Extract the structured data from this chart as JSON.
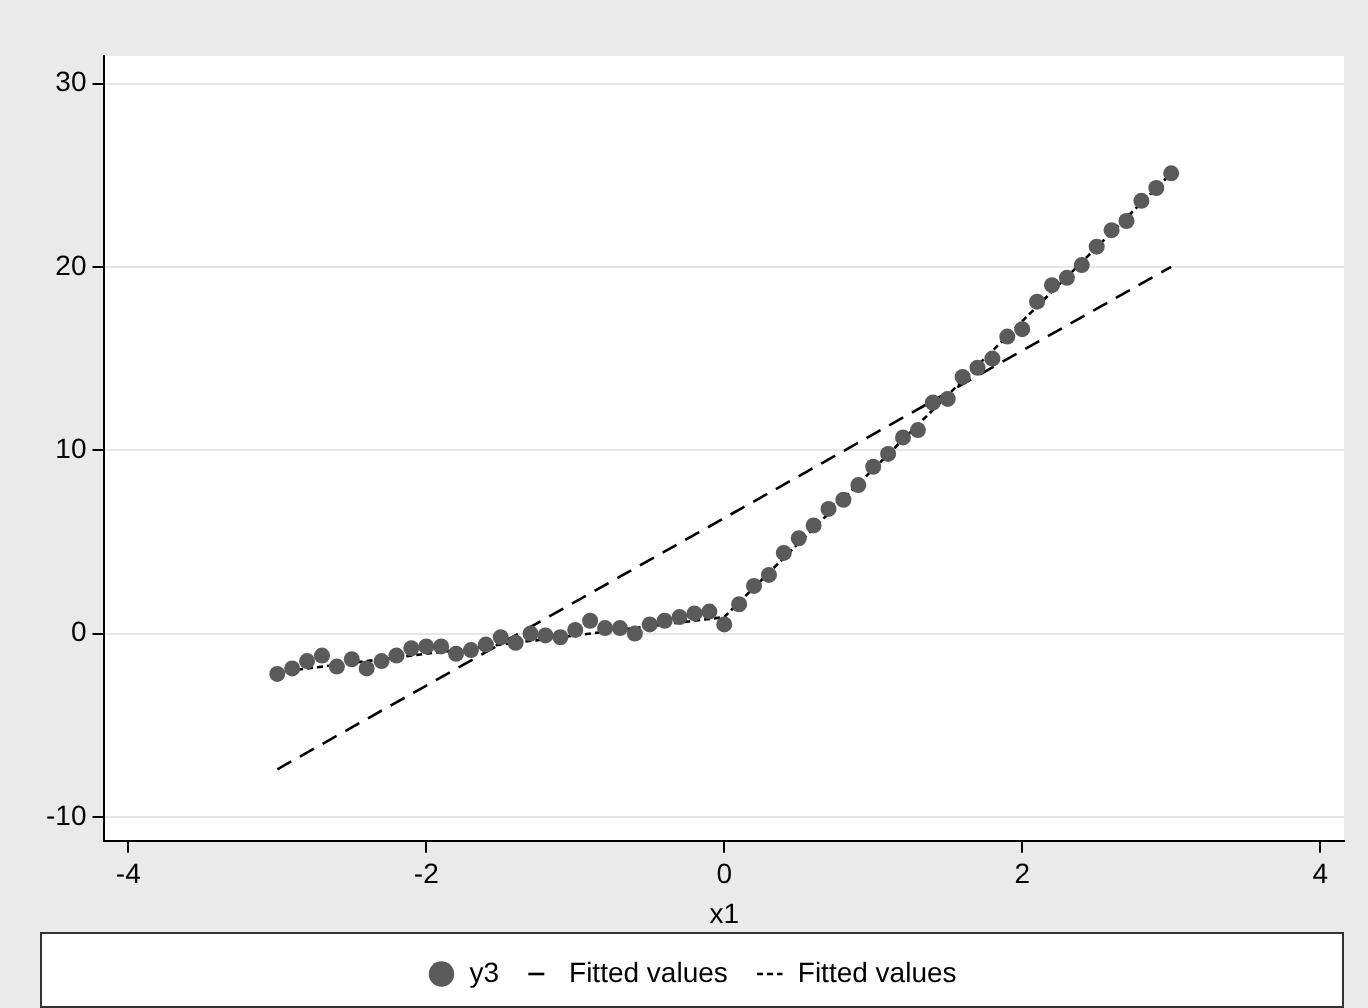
{
  "chart_data": {
    "type": "scatter",
    "xlabel": "x1",
    "xlim": [
      -4.16,
      4.16
    ],
    "xticks": [
      -4,
      -2,
      0,
      2,
      4
    ],
    "ylim": [
      -11.3,
      31.5
    ],
    "yticks": [
      -10,
      0,
      10,
      20,
      30
    ],
    "grid": "y",
    "legend": "bottom",
    "series": [
      {
        "name": "y3",
        "type": "scatter",
        "color": "#5a5a5a",
        "marker": "circle",
        "x": [
          -3.0,
          -2.9,
          -2.8,
          -2.7,
          -2.6,
          -2.5,
          -2.4,
          -2.3,
          -2.2,
          -2.1,
          -2.0,
          -1.9,
          -1.8,
          -1.7,
          -1.6,
          -1.5,
          -1.4,
          -1.3,
          -1.2,
          -1.1,
          -1.0,
          -0.9,
          -0.8,
          -0.7,
          -0.6,
          -0.5,
          -0.4,
          -0.3,
          -0.2,
          -0.1,
          0.0,
          0.1,
          0.2,
          0.3,
          0.4,
          0.5,
          0.6,
          0.7,
          0.8,
          0.9,
          1.0,
          1.1,
          1.2,
          1.3,
          1.4,
          1.5,
          1.6,
          1.7,
          1.8,
          1.9,
          2.0,
          2.1,
          2.2,
          2.3,
          2.4,
          2.5,
          2.6,
          2.7,
          2.8,
          2.9,
          3.0
        ],
        "values": [
          -2.2,
          -1.9,
          -1.5,
          -1.2,
          -1.8,
          -1.4,
          -1.9,
          -1.5,
          -1.2,
          -0.8,
          -0.7,
          -0.7,
          -1.1,
          -0.9,
          -0.6,
          -0.2,
          -0.5,
          0.0,
          -0.1,
          -0.2,
          0.2,
          0.7,
          0.3,
          0.3,
          0.0,
          0.5,
          0.7,
          0.9,
          1.1,
          1.2,
          0.5,
          1.6,
          2.6,
          3.2,
          4.4,
          5.2,
          5.9,
          6.8,
          7.3,
          8.1,
          9.1,
          9.8,
          10.7,
          11.1,
          12.6,
          12.8,
          14.0,
          14.5,
          15.0,
          16.2,
          16.6,
          18.1,
          19.0,
          19.4,
          20.1,
          21.1,
          22.0,
          22.5,
          23.6,
          24.3,
          25.1
        ]
      },
      {
        "name": "Fitted values",
        "type": "line",
        "color": "#000000",
        "line_style": "dashed",
        "x": [
          -3,
          3
        ],
        "values": [
          -7.4,
          20.0
        ]
      },
      {
        "name": "Fitted values",
        "type": "line",
        "color": "#000000",
        "line_style": "dotted",
        "x": [
          -3,
          0,
          3
        ],
        "values": [
          -2.1,
          0.9,
          25.1
        ]
      }
    ]
  }
}
